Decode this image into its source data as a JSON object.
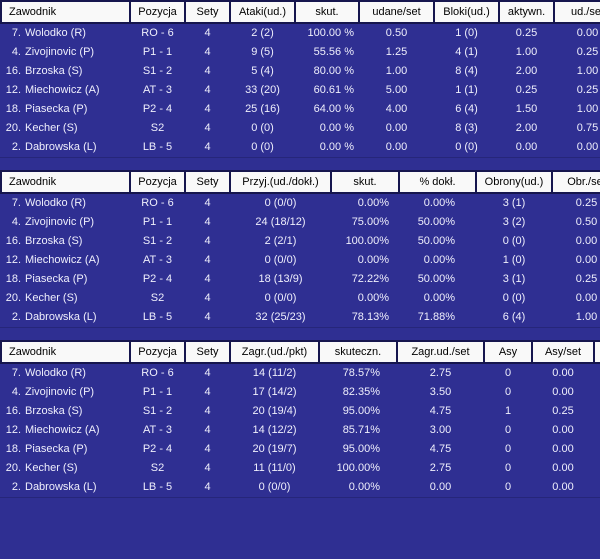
{
  "colors": {
    "page_background": "#2F2F92",
    "header_background": "#F9F9F9",
    "header_text": "#000000",
    "row_text": "#EFEFFC",
    "grid_line": "#16164E"
  },
  "tables": [
    {
      "name": "attacks-blocks",
      "columns": [
        "Zawodnik",
        "Pozycja",
        "Sety",
        "Ataki(ud.)",
        "skut.",
        "udane/set",
        "Bloki(ud.)",
        "aktywn.",
        "ud./set"
      ],
      "rows": [
        [
          "7. Wolodko (R)",
          "RO - 6",
          "4",
          "2 (2)",
          "100.00 %",
          "0.50",
          "1 (0)",
          "0.25",
          "0.00"
        ],
        [
          "4. Zivojinovic (P)",
          "P1 - 1",
          "4",
          "9 (5)",
          "55.56 %",
          "1.25",
          "4 (1)",
          "1.00",
          "0.25"
        ],
        [
          "16. Brzoska (S)",
          "S1 - 2",
          "4",
          "5 (4)",
          "80.00 %",
          "1.00",
          "8 (4)",
          "2.00",
          "1.00"
        ],
        [
          "12. Miechowicz (A)",
          "AT - 3",
          "4",
          "33 (20)",
          "60.61 %",
          "5.00",
          "1 (1)",
          "0.25",
          "0.25"
        ],
        [
          "18. Piasecka (P)",
          "P2 - 4",
          "4",
          "25 (16)",
          "64.00 %",
          "4.00",
          "6 (4)",
          "1.50",
          "1.00"
        ],
        [
          "20. Kecher (S)",
          "S2",
          "4",
          "0 (0)",
          "0.00 %",
          "0.00",
          "8 (3)",
          "2.00",
          "0.75"
        ],
        [
          "2. Dabrowska (L)",
          "LB - 5",
          "4",
          "0 (0)",
          "0.00 %",
          "0.00",
          "0 (0)",
          "0.00",
          "0.00"
        ]
      ]
    },
    {
      "name": "reception-defense",
      "columns": [
        "Zawodnik",
        "Pozycja",
        "Sety",
        "Przyj.(ud./dokł.)",
        "skut.",
        "% dokł.",
        "Obrony(ud.)",
        "Obr./set"
      ],
      "rows": [
        [
          "7. Wolodko (R)",
          "RO - 6",
          "4",
          "0 (0/0)",
          "0.00%",
          "0.00%",
          "3 (1)",
          "0.25"
        ],
        [
          "4. Zivojinovic (P)",
          "P1 - 1",
          "4",
          "24 (18/12)",
          "75.00%",
          "50.00%",
          "3 (2)",
          "0.50"
        ],
        [
          "16. Brzoska (S)",
          "S1 - 2",
          "4",
          "2 (2/1)",
          "100.00%",
          "50.00%",
          "0 (0)",
          "0.00"
        ],
        [
          "12. Miechowicz (A)",
          "AT - 3",
          "4",
          "0 (0/0)",
          "0.00%",
          "0.00%",
          "1 (0)",
          "0.00"
        ],
        [
          "18. Piasecka (P)",
          "P2 - 4",
          "4",
          "18 (13/9)",
          "72.22%",
          "50.00%",
          "3 (1)",
          "0.25"
        ],
        [
          "20. Kecher (S)",
          "S2",
          "4",
          "0 (0/0)",
          "0.00%",
          "0.00%",
          "0 (0)",
          "0.00"
        ],
        [
          "2. Dabrowska (L)",
          "LB - 5",
          "4",
          "32 (25/23)",
          "78.13%",
          "71.88%",
          "6 (4)",
          "1.00"
        ]
      ]
    },
    {
      "name": "serve",
      "columns": [
        "Zawodnik",
        "Pozycja",
        "Sety",
        "Zagr.(ud./pkt)",
        "skuteczn.",
        "Zagr.ud./set",
        "Asy",
        "Asy/set",
        ""
      ],
      "rows": [
        [
          "7. Wolodko (R)",
          "RO - 6",
          "4",
          "14 (11/2)",
          "78.57%",
          "2.75",
          "0",
          "0.00"
        ],
        [
          "4. Zivojinovic (P)",
          "P1 - 1",
          "4",
          "17 (14/2)",
          "82.35%",
          "3.50",
          "0",
          "0.00"
        ],
        [
          "16. Brzoska (S)",
          "S1 - 2",
          "4",
          "20 (19/4)",
          "95.00%",
          "4.75",
          "1",
          "0.25"
        ],
        [
          "12. Miechowicz (A)",
          "AT - 3",
          "4",
          "14 (12/2)",
          "85.71%",
          "3.00",
          "0",
          "0.00"
        ],
        [
          "18. Piasecka (P)",
          "P2 - 4",
          "4",
          "20 (19/7)",
          "95.00%",
          "4.75",
          "0",
          "0.00"
        ],
        [
          "20. Kecher (S)",
          "S2",
          "4",
          "11 (11/0)",
          "100.00%",
          "2.75",
          "0",
          "0.00"
        ],
        [
          "2. Dabrowska (L)",
          "LB - 5",
          "4",
          "0 (0/0)",
          "0.00%",
          "0.00",
          "0",
          "0.00"
        ]
      ]
    }
  ]
}
